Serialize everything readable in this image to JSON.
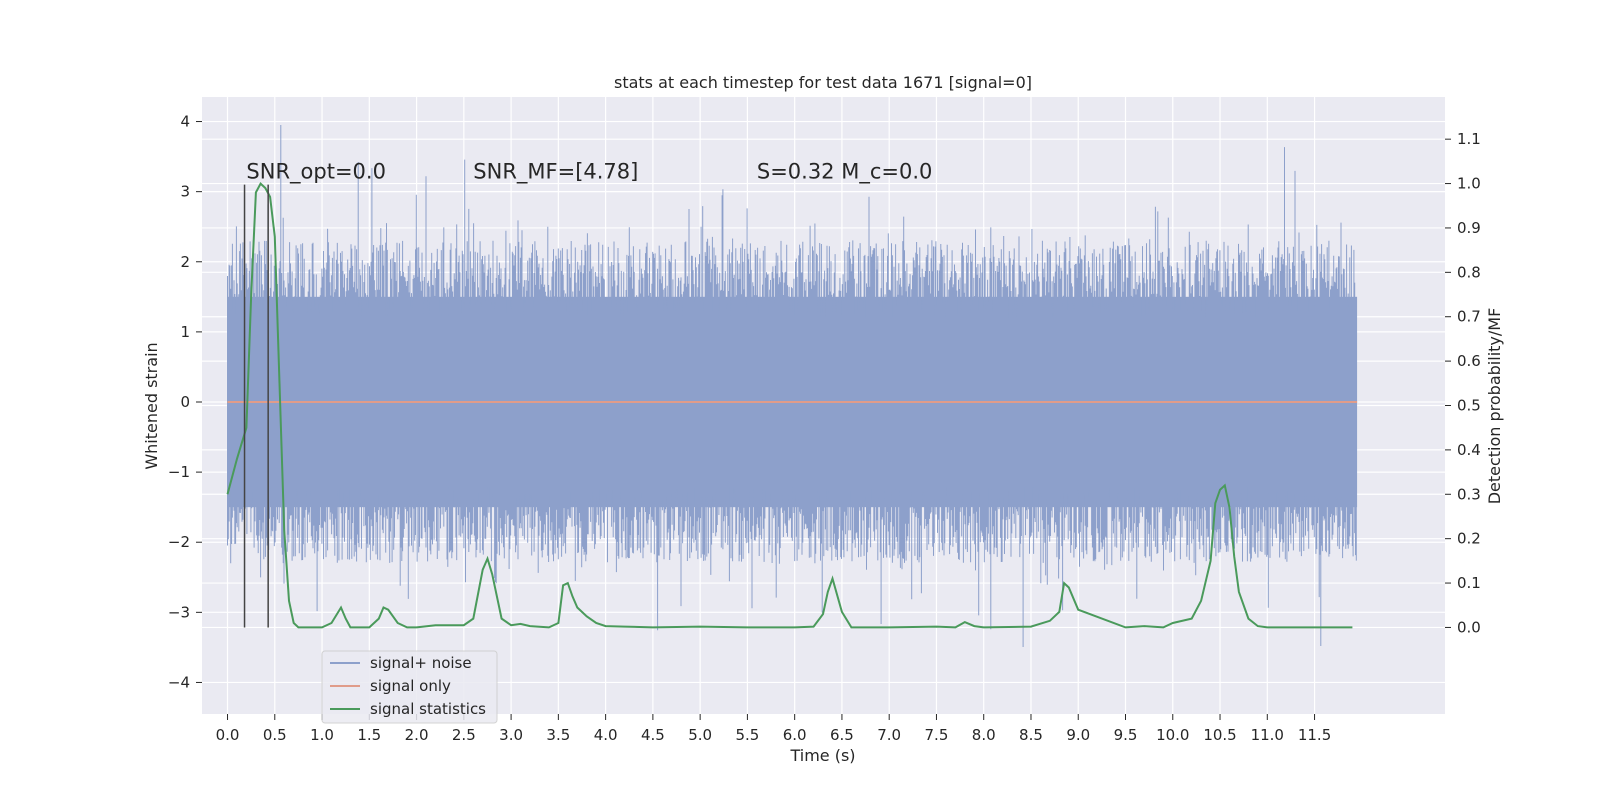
{
  "chart_data": {
    "type": "line",
    "title": "stats at each timestep for test data 1671 [signal=0]",
    "xlabel": "Time (s)",
    "ylabel": "Whitened strain",
    "y2label": "Detection probability/MF",
    "xlim": [
      -0.27,
      12.88
    ],
    "ylim": [
      -4.45,
      4.35
    ],
    "y2lim": [
      -0.195,
      1.195
    ],
    "x_ticks": [
      "0.0",
      "0.5",
      "1.0",
      "1.5",
      "2.0",
      "2.5",
      "3.0",
      "3.5",
      "4.0",
      "4.5",
      "5.0",
      "5.5",
      "6.0",
      "6.5",
      "7.0",
      "7.5",
      "8.0",
      "8.5",
      "9.0",
      "9.5",
      "10.0",
      "10.5",
      "11.0",
      "11.5"
    ],
    "y_ticks": [
      "4",
      "3",
      "2",
      "1",
      "0",
      "−1",
      "−2",
      "−3",
      "−4"
    ],
    "y2_ticks": [
      "1.1",
      "1.0",
      "0.9",
      "0.8",
      "0.7",
      "0.6",
      "0.5",
      "0.4",
      "0.3",
      "0.2",
      "0.1",
      "0.0"
    ],
    "grid": true,
    "legend_position": "lower-left",
    "annotations": [
      {
        "label": "SNR_opt=0.0",
        "x": 0.2,
        "y": 3.1
      },
      {
        "label": "SNR_MF=[4.78]",
        "x": 2.6,
        "y": 3.1
      },
      {
        "label": "S=0.32   M_c=0.0",
        "x": 5.6,
        "y": 3.1
      }
    ],
    "vlines": [
      {
        "x": 0.18,
        "y_top": 3.1
      },
      {
        "x": 0.43,
        "y_top": 3.1
      }
    ],
    "noise_series": {
      "name": "signal+ noise",
      "x_start": 0.0,
      "x_end": 11.95,
      "samples": 1400,
      "color": "#8da0cb",
      "bulk_envelope": [
        -1.5,
        1.5
      ]
    },
    "series": [
      {
        "name": "signal only",
        "color": "#e09c8a",
        "x": [
          0.0,
          11.95
        ],
        "y": [
          0.0,
          0.0
        ]
      },
      {
        "name": "signal statistics",
        "color": "#4a9a5b",
        "axis": "right",
        "x": [
          0.0,
          0.1,
          0.2,
          0.25,
          0.3,
          0.35,
          0.4,
          0.45,
          0.5,
          0.55,
          0.6,
          0.65,
          0.7,
          0.75,
          0.8,
          0.9,
          1.0,
          1.1,
          1.2,
          1.25,
          1.3,
          1.4,
          1.5,
          1.6,
          1.65,
          1.7,
          1.8,
          1.9,
          2.0,
          2.2,
          2.4,
          2.5,
          2.6,
          2.7,
          2.75,
          2.8,
          2.9,
          3.0,
          3.1,
          3.2,
          3.4,
          3.5,
          3.55,
          3.6,
          3.65,
          3.7,
          3.8,
          3.9,
          4.0,
          4.2,
          4.5,
          5.0,
          5.5,
          6.0,
          6.2,
          6.3,
          6.35,
          6.4,
          6.5,
          6.6,
          7.0,
          7.5,
          7.7,
          7.8,
          7.9,
          8.0,
          8.5,
          8.7,
          8.8,
          8.85,
          8.9,
          9.0,
          9.5,
          9.7,
          9.9,
          10.0,
          10.2,
          10.3,
          10.4,
          10.45,
          10.5,
          10.55,
          10.6,
          10.65,
          10.7,
          10.8,
          10.9,
          11.0,
          11.5,
          11.9
        ],
        "y": [
          0.3,
          0.38,
          0.45,
          0.75,
          0.98,
          1.0,
          0.99,
          0.97,
          0.88,
          0.55,
          0.22,
          0.06,
          0.01,
          0.0,
          0.0,
          0.0,
          0.0,
          0.01,
          0.045,
          0.02,
          0.0,
          0.0,
          0.0,
          0.02,
          0.045,
          0.04,
          0.01,
          0.0,
          0.0,
          0.005,
          0.005,
          0.005,
          0.02,
          0.13,
          0.155,
          0.12,
          0.02,
          0.005,
          0.008,
          0.003,
          0.0,
          0.01,
          0.095,
          0.1,
          0.07,
          0.045,
          0.025,
          0.01,
          0.003,
          0.002,
          0.0,
          0.002,
          0.0,
          0.0,
          0.002,
          0.03,
          0.08,
          0.11,
          0.035,
          0.0,
          0.0,
          0.002,
          0.0,
          0.012,
          0.003,
          0.0,
          0.002,
          0.015,
          0.035,
          0.1,
          0.09,
          0.04,
          0.0,
          0.003,
          0.0,
          0.01,
          0.02,
          0.06,
          0.15,
          0.28,
          0.31,
          0.32,
          0.27,
          0.16,
          0.08,
          0.02,
          0.003,
          0.0,
          0.0,
          0.0
        ]
      }
    ]
  }
}
